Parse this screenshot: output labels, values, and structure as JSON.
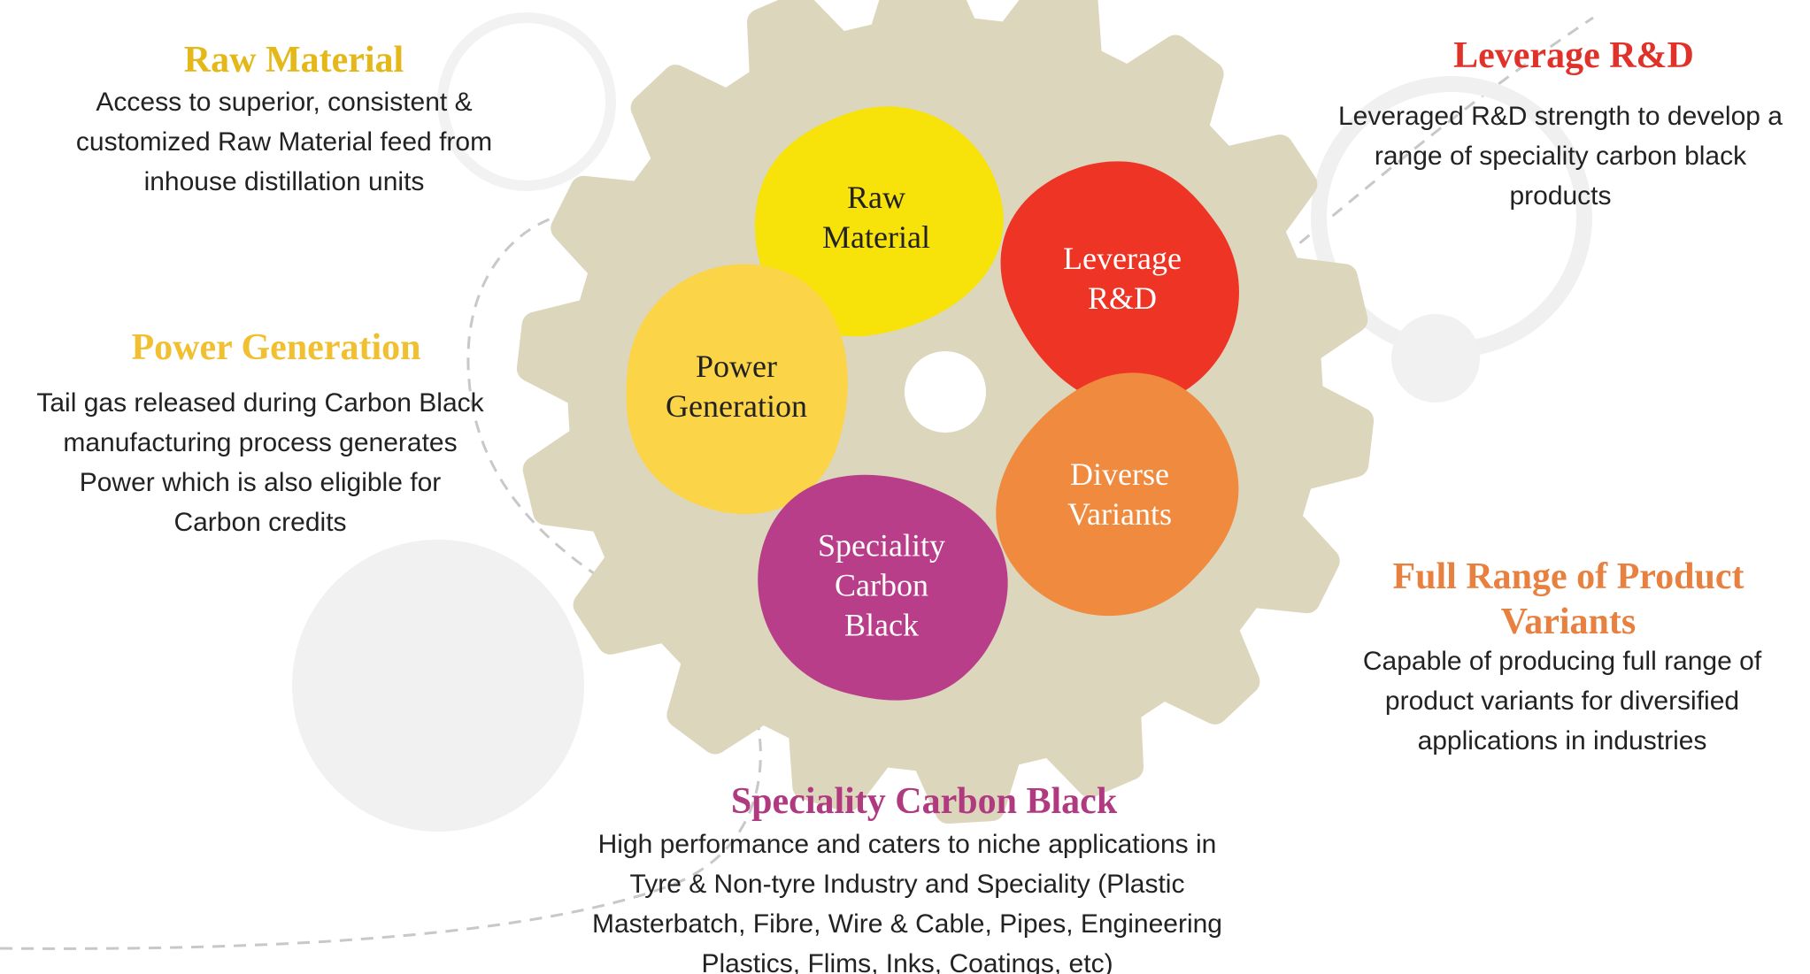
{
  "petals": [
    {
      "lines": [
        "Raw",
        "Material"
      ]
    },
    {
      "lines": [
        "Leverage",
        "R&D"
      ]
    },
    {
      "lines": [
        "Power",
        "Generation"
      ]
    },
    {
      "lines": [
        "Diverse",
        "Variants"
      ]
    },
    {
      "lines": [
        "Speciality",
        "Carbon",
        "Black"
      ]
    }
  ],
  "sections": [
    {
      "title": [
        "Raw Material"
      ],
      "description": [
        "Access to superior, consistent &",
        "customized Raw Material feed from",
        "inhouse distillation units"
      ]
    },
    {
      "title": [
        "Power Generation"
      ],
      "description": [
        "Tail gas released during Carbon Black",
        "manufacturing process generates",
        "Power which is also eligible for",
        "Carbon credits"
      ]
    },
    {
      "title": [
        "Leverage R&D"
      ],
      "description": [
        "Leveraged R&D strength to develop a",
        "range of speciality carbon black",
        "products"
      ]
    },
    {
      "title": [
        "Full Range of Product",
        "Variants"
      ],
      "description": [
        "Capable of producing full range of",
        "product variants for diversified",
        "applications in industries"
      ]
    },
    {
      "title": [
        "Speciality Carbon Black"
      ],
      "description": [
        "High performance and caters to niche applications in",
        "Tyre & Non-tyre Industry and Speciality (Plastic",
        "Masterbatch, Fibre, Wire & Cable, Pipes, Engineering",
        "Plastics, Flims, Inks, Coatings, etc)"
      ]
    }
  ]
}
